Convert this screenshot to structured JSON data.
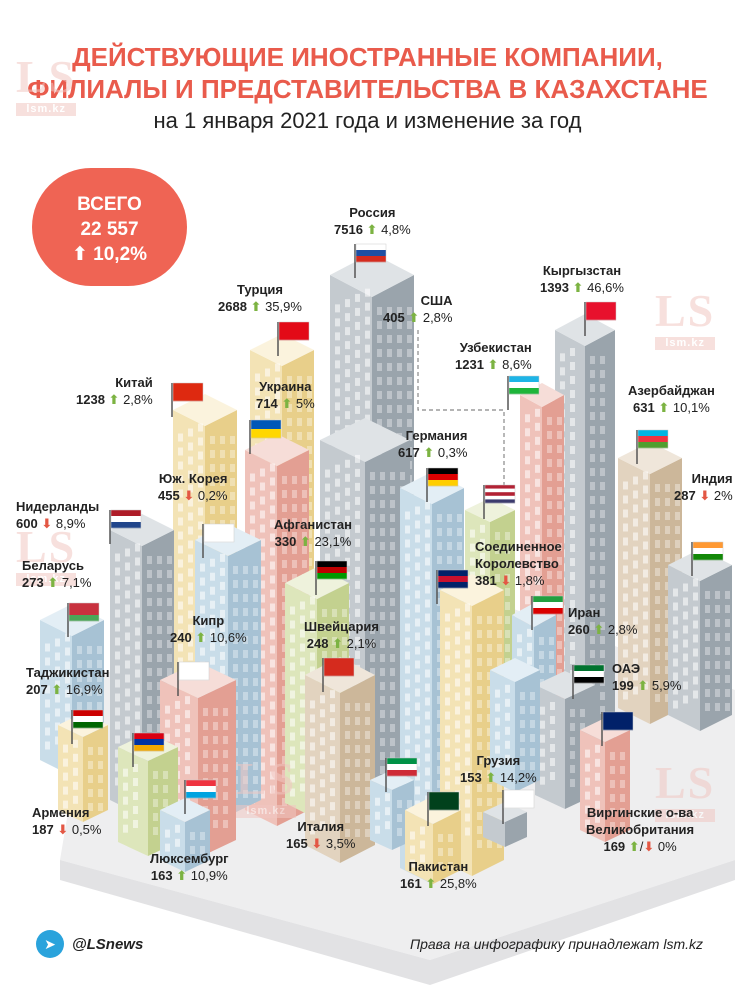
{
  "title_line1": "ДЕЙСТВУЮЩИЕ ИНОСТРАННЫЕ КОМПАНИИ,",
  "title_line2": "ФИЛИАЛЫ И ПРЕДСТАВИТЕЛЬСТВА В КАЗАХСТАНЕ",
  "subtitle": "на 1 января 2021 года и изменение за год",
  "total": {
    "label": "ВСЕГО",
    "value": "22 557",
    "change": "10,2%",
    "arrow": "⬆"
  },
  "watermark": {
    "letters": "LS",
    "site": "lsm.kz"
  },
  "countries": [
    {
      "name": "Россия",
      "value": "7516",
      "change": "4,8%",
      "dir": "up"
    },
    {
      "name": "Кыргызстан",
      "value": "1393",
      "change": "46,6%",
      "dir": "up"
    },
    {
      "name": "Турция",
      "value": "2688",
      "change": "35,9%",
      "dir": "up"
    },
    {
      "name": "США",
      "value": "405",
      "change": "2,8%",
      "dir": "up"
    },
    {
      "name": "Узбекистан",
      "value": "1231",
      "change": "8,6%",
      "dir": "up"
    },
    {
      "name": "Китай",
      "value": "1238",
      "change": "2,8%",
      "dir": "up"
    },
    {
      "name": "Украина",
      "value": "714",
      "change": "5%",
      "dir": "up"
    },
    {
      "name": "Азербайджан",
      "value": "631",
      "change": "10,1%",
      "dir": "up"
    },
    {
      "name": "Германия",
      "value": "617",
      "change": "0,3%",
      "dir": "up"
    },
    {
      "name": "Юж. Корея",
      "value": "455",
      "change": "0,2%",
      "dir": "down"
    },
    {
      "name": "Индия",
      "value": "287",
      "change": "2%",
      "dir": "down"
    },
    {
      "name": "Нидерланды",
      "value": "600",
      "change": "8,9%",
      "dir": "down"
    },
    {
      "name": "Афганистан",
      "value": "330",
      "change": "23,1%",
      "dir": "up"
    },
    {
      "name": "Соединенное Королевство",
      "value": "381",
      "change": "1,8%",
      "dir": "down"
    },
    {
      "name": "Беларусь",
      "value": "273",
      "change": "7,1%",
      "dir": "up"
    },
    {
      "name": "Кипр",
      "value": "240",
      "change": "10,6%",
      "dir": "up"
    },
    {
      "name": "Швейцария",
      "value": "248",
      "change": "2,1%",
      "dir": "up"
    },
    {
      "name": "Иран",
      "value": "260",
      "change": "2,8%",
      "dir": "up"
    },
    {
      "name": "Таджикистан",
      "value": "207",
      "change": "16,9%",
      "dir": "up"
    },
    {
      "name": "ОАЭ",
      "value": "199",
      "change": "5,9%",
      "dir": "up"
    },
    {
      "name": "Грузия",
      "value": "153",
      "change": "14,2%",
      "dir": "up"
    },
    {
      "name": "Армения",
      "value": "187",
      "change": "0,5%",
      "dir": "down"
    },
    {
      "name": "Италия",
      "value": "165",
      "change": "3,5%",
      "dir": "down"
    },
    {
      "name": "Виргинские о-ва Великобритания",
      "value": "169",
      "change": "0%",
      "dir": "both"
    },
    {
      "name": "Люксембург",
      "value": "163",
      "change": "10,9%",
      "dir": "up"
    },
    {
      "name": "Пакистан",
      "value": "161",
      "change": "25,8%",
      "dir": "up"
    }
  ],
  "footer": {
    "handle": "@LSnews",
    "copyright": "Права на инфографику принадлежат lsm.kz"
  },
  "colors": {
    "accent": "#e95b4c",
    "up": "#7cb342",
    "down": "#e35744"
  }
}
